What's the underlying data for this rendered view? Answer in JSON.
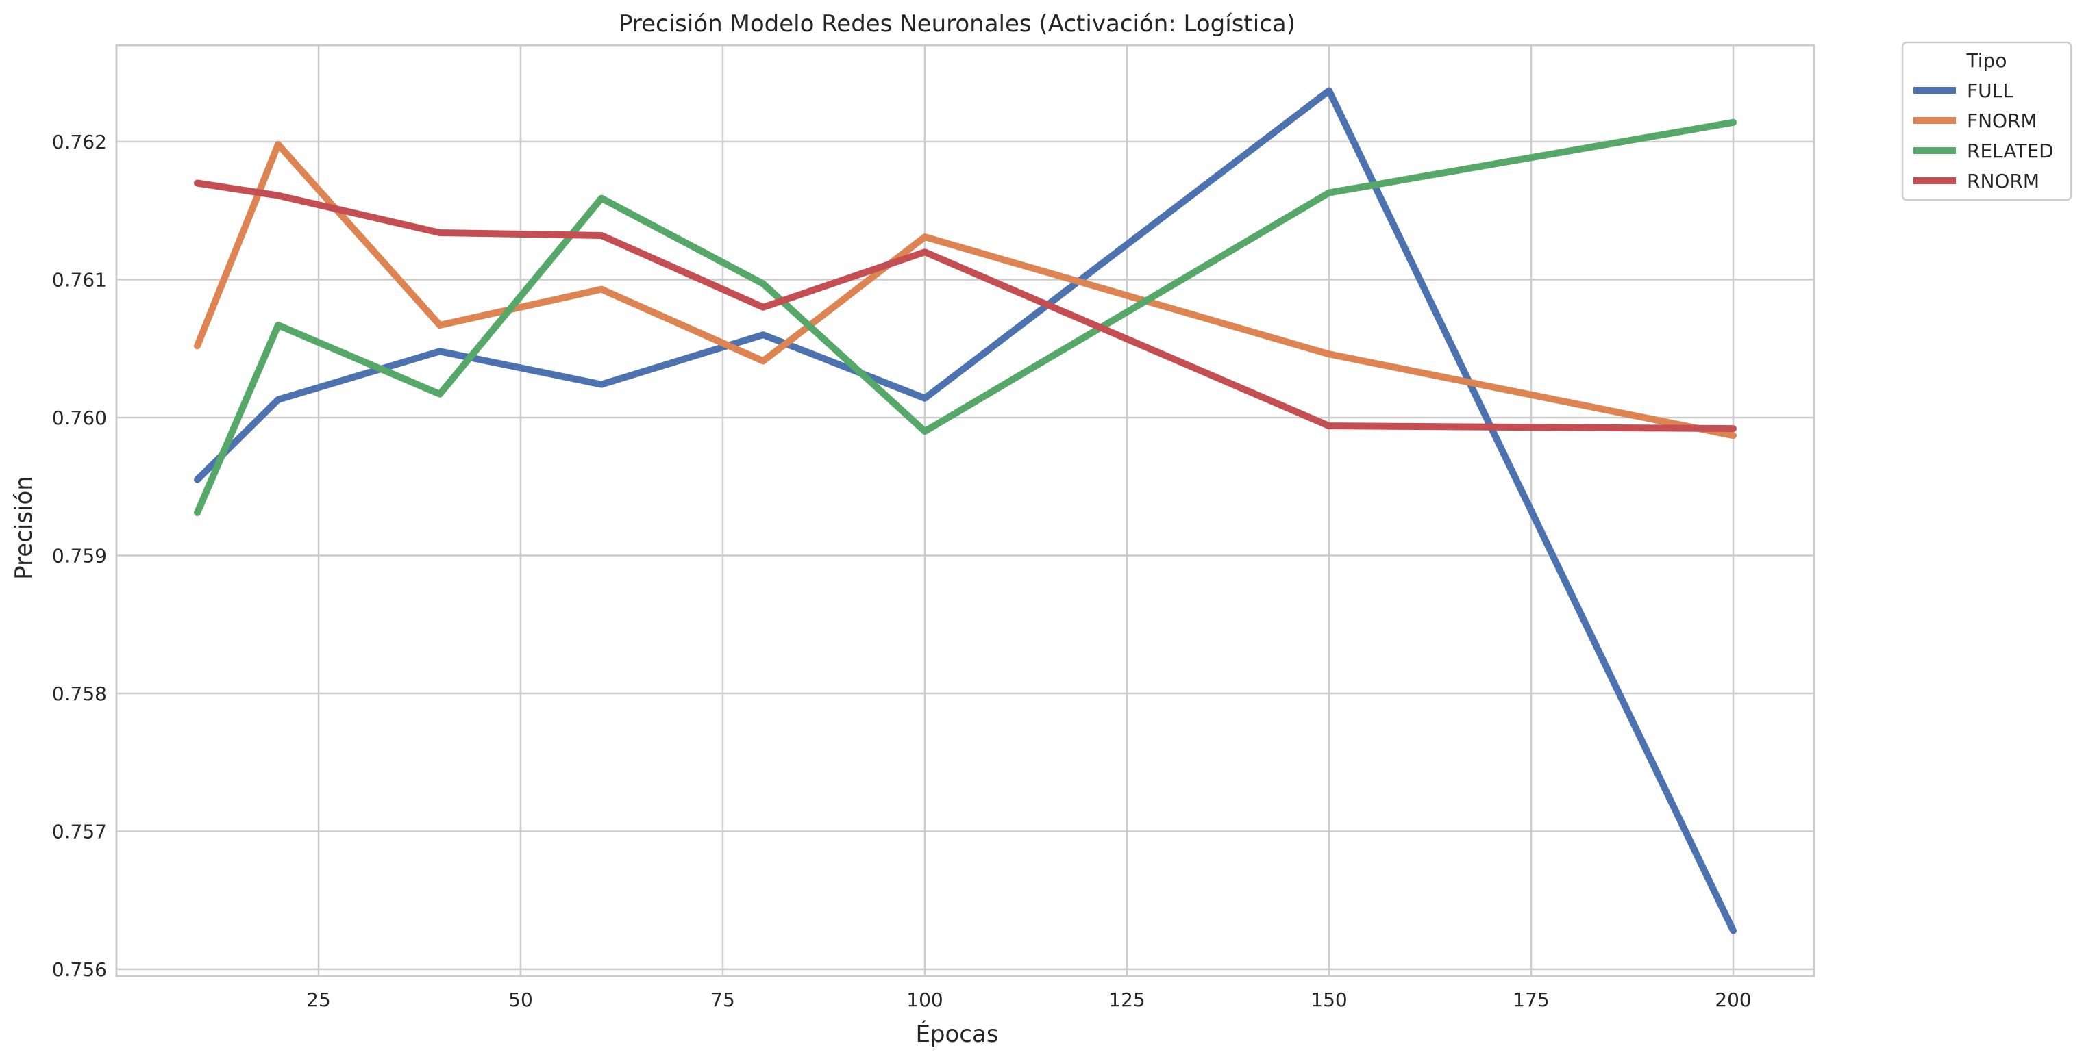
{
  "chart_data": {
    "type": "line",
    "title": "Precisión Modelo Redes Neuronales (Activación: Logística)",
    "xlabel": "Épocas",
    "ylabel": "Precisión",
    "x": [
      10,
      20,
      40,
      60,
      80,
      100,
      150,
      200
    ],
    "xlim": [
      0,
      210
    ],
    "ylim": [
      0.75595,
      0.7627
    ],
    "xticks": [
      25,
      50,
      75,
      100,
      125,
      150,
      175,
      200
    ],
    "yticks": [
      0.756,
      0.757,
      0.758,
      0.759,
      0.76,
      0.761,
      0.762
    ],
    "grid": true,
    "legend": {
      "title": "Tipo",
      "placement": "outside-top-right"
    },
    "series": [
      {
        "name": "FULL",
        "color": "#4c72b0",
        "values": [
          0.75955,
          0.76013,
          0.76048,
          0.76024,
          0.7606,
          0.76014,
          0.76237,
          0.75628
        ]
      },
      {
        "name": "FNORM",
        "color": "#dd8452",
        "values": [
          0.76052,
          0.76198,
          0.76067,
          0.76093,
          0.76041,
          0.76131,
          0.76046,
          0.75987
        ]
      },
      {
        "name": "RELATED",
        "color": "#55a868",
        "values": [
          0.75931,
          0.76067,
          0.76017,
          0.76159,
          0.76097,
          0.7599,
          0.76163,
          0.76214
        ]
      },
      {
        "name": "RNORM",
        "color": "#c44e52",
        "values": [
          0.7617,
          0.76161,
          0.76134,
          0.76132,
          0.7608,
          0.7612,
          0.75994,
          0.75992
        ]
      }
    ]
  }
}
